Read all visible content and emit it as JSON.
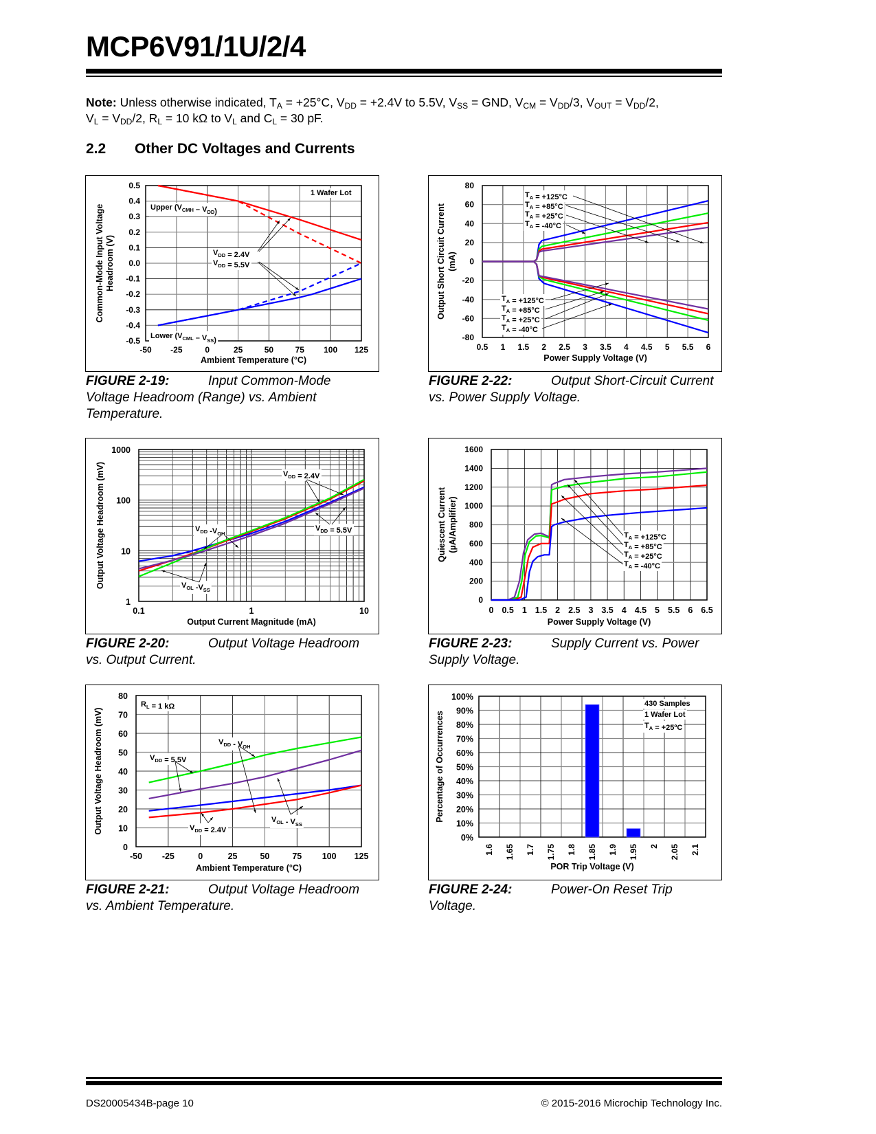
{
  "header": {
    "title": "MCP6V91/1U/2/4"
  },
  "note": {
    "label": "Note:",
    "line1": [
      {
        "t": " Unless otherwise indicated, T"
      },
      {
        "s": "A"
      },
      {
        "t": " = +25°C, V"
      },
      {
        "s": "DD"
      },
      {
        "t": " = +2.4V to 5.5V, V"
      },
      {
        "s": "SS"
      },
      {
        "t": " = GND, V"
      },
      {
        "s": "CM"
      },
      {
        "t": " = V"
      },
      {
        "s": "DD"
      },
      {
        "t": "/3, V"
      },
      {
        "s": "OUT"
      },
      {
        "t": " = V"
      },
      {
        "s": "DD"
      },
      {
        "t": "/2,"
      }
    ],
    "line2": [
      {
        "t": "V"
      },
      {
        "s": "L"
      },
      {
        "t": " = V"
      },
      {
        "s": "DD"
      },
      {
        "t": "/2, R"
      },
      {
        "s": "L"
      },
      {
        "t": " = 10 kΩ to V"
      },
      {
        "s": "L"
      },
      {
        "t": " and C"
      },
      {
        "s": "L"
      },
      {
        "t": " = 30 pF."
      }
    ]
  },
  "section": {
    "number": "2.2",
    "title": "Other DC Voltages and Currents"
  },
  "colors": {
    "red": "#ff0000",
    "blue": "#0000ff",
    "green": "#00ee00",
    "purple": "#7030a0",
    "grid": "#000000"
  },
  "figures": [
    {
      "label": "FIGURE 2-19:",
      "caption_first": "Input Common-Mode",
      "caption_rest": "Voltage Headroom (Range) vs. Ambient Temperature."
    },
    {
      "label": "FIGURE 2-22:",
      "caption_first": "Output Short-Circuit Current",
      "caption_rest": "vs. Power Supply Voltage."
    },
    {
      "label": "FIGURE 2-20:",
      "caption_first": "Output Voltage Headroom",
      "caption_rest": "vs. Output Current."
    },
    {
      "label": "FIGURE 2-23:",
      "caption_first": "Supply Current vs. Power",
      "caption_rest": "Supply Voltage."
    },
    {
      "label": "FIGURE 2-21:",
      "caption_first": "Output Voltage Headroom",
      "caption_rest": "vs. Ambient Temperature."
    },
    {
      "label": "FIGURE 2-24:",
      "caption_first": "Power-On Reset Trip",
      "caption_rest": "Voltage."
    }
  ],
  "chart_data": [
    {
      "id": "fig2-19",
      "type": "line",
      "title": "",
      "xlabel": "Ambient Temperature (°C)",
      "ylabel": [
        "Common-Mode Input Voltage",
        "Headroom (V)"
      ],
      "xlim": [
        -50,
        125
      ],
      "ylim": [
        -0.5,
        0.5
      ],
      "xticks": [
        -50,
        -25,
        0,
        25,
        50,
        75,
        100,
        125
      ],
      "yticks": [
        0.5,
        0.4,
        0.3,
        0.2,
        0.1,
        0.0,
        -0.1,
        -0.2,
        -0.3,
        -0.4,
        -0.5
      ],
      "ytick_labels": [
        "0.5",
        "0.4",
        "0.3",
        "0.2",
        "0.1",
        "0.0",
        "-0.1",
        "-0.2",
        "-0.3",
        "-0.4",
        "-0.5"
      ],
      "grid": true,
      "annotations": [
        "1 Wafer Lot",
        "Upper (VCMH – VDD)",
        "Lower (VCML – VSS)",
        "VDD = 2.4V",
        "VDD = 5.5V"
      ],
      "series": [
        {
          "name": "Upper VDD = 2.4V",
          "color": "red",
          "dash": false,
          "x": [
            -40,
            25,
            75,
            125
          ],
          "y": [
            0.5,
            0.4,
            0.28,
            0.15
          ]
        },
        {
          "name": "Upper VDD = 5.5V",
          "color": "red",
          "dash": true,
          "x": [
            -40,
            25,
            75,
            125
          ],
          "y": [
            0.5,
            0.4,
            0.19,
            0.0
          ]
        },
        {
          "name": "Lower VDD = 2.4V",
          "color": "blue",
          "dash": false,
          "x": [
            -40,
            25,
            75,
            85,
            125
          ],
          "y": [
            -0.4,
            -0.3,
            -0.22,
            -0.2,
            -0.1
          ]
        },
        {
          "name": "Lower VDD = 5.5V",
          "color": "blue",
          "dash": true,
          "x": [
            -40,
            25,
            75,
            125
          ],
          "y": [
            -0.4,
            -0.3,
            -0.18,
            0.0
          ]
        }
      ]
    },
    {
      "id": "fig2-22",
      "type": "line",
      "title": "",
      "xlabel": "Power Supply Voltage (V)",
      "ylabel": [
        "Output Short Circuit Current",
        "(mA)"
      ],
      "xlim": [
        0.5,
        6
      ],
      "ylim": [
        -80,
        80
      ],
      "xticks": [
        0.5,
        1,
        1.5,
        2,
        2.5,
        3,
        3.5,
        4,
        4.5,
        5,
        5.5,
        6
      ],
      "xtick_labels": [
        "0.5",
        "1",
        "1.5",
        "2",
        "2.5",
        "3",
        "3.5",
        "4",
        "4.5",
        "5",
        "5.5",
        "6"
      ],
      "yticks": [
        80,
        60,
        40,
        20,
        0,
        -20,
        -40,
        -60,
        -80
      ],
      "ytick_labels": [
        "80",
        "60",
        "40",
        "20",
        "0",
        "-20",
        "-40",
        "-60",
        "-80"
      ],
      "grid": true,
      "legend_upper": [
        "TA = +125°C",
        "TA = +85°C",
        "TA = +25°C",
        "TA = -40°C"
      ],
      "legend_lower": [
        "TA = +125°C",
        "TA = +85°C",
        "TA = +25°C",
        "TA = -40°C"
      ],
      "series": [
        {
          "name": "Source -40°C",
          "color": "blue",
          "x": [
            0.5,
            1.75,
            1.82,
            1.88,
            1.95,
            6
          ],
          "y": [
            0,
            0,
            2,
            18,
            22,
            64
          ]
        },
        {
          "name": "Source +25°C",
          "color": "green",
          "x": [
            0.5,
            1.75,
            1.82,
            1.88,
            1.95,
            6
          ],
          "y": [
            0,
            0,
            2,
            13,
            16,
            51
          ]
        },
        {
          "name": "Source +85°C",
          "color": "red",
          "x": [
            0.5,
            1.75,
            1.82,
            1.88,
            1.95,
            6
          ],
          "y": [
            0,
            0,
            2,
            11,
            13,
            41
          ]
        },
        {
          "name": "Source +125°C",
          "color": "purple",
          "x": [
            0.5,
            1.75,
            1.82,
            1.88,
            1.95,
            6
          ],
          "y": [
            0,
            0,
            2,
            10,
            11,
            36
          ]
        },
        {
          "name": "Sink -40°C",
          "color": "blue",
          "x": [
            0.5,
            1.75,
            1.82,
            1.88,
            2.0,
            6
          ],
          "y": [
            0,
            0,
            -3,
            -18,
            -23,
            -75
          ]
        },
        {
          "name": "Sink +25°C",
          "color": "green",
          "x": [
            0.5,
            1.75,
            1.82,
            1.88,
            2.0,
            6
          ],
          "y": [
            0,
            0,
            -3,
            -16,
            -19,
            -62
          ]
        },
        {
          "name": "Sink +85°C",
          "color": "red",
          "x": [
            0.5,
            1.75,
            1.82,
            1.88,
            2.0,
            6
          ],
          "y": [
            0,
            0,
            -3,
            -15,
            -17,
            -55
          ]
        },
        {
          "name": "Sink +125°C",
          "color": "purple",
          "x": [
            0.5,
            1.75,
            1.82,
            1.88,
            2.0,
            6
          ],
          "y": [
            0,
            0,
            -3,
            -15,
            -16,
            -50
          ]
        }
      ]
    },
    {
      "id": "fig2-20",
      "type": "line",
      "scale": "log-log",
      "title": "",
      "xlabel": "Output Current Magnitude (mA)",
      "ylabel": [
        "Output Voltage Headroom (mV)"
      ],
      "xlim": [
        0.1,
        10
      ],
      "ylim": [
        1,
        1000
      ],
      "xtick_labels": [
        "0.1",
        "1",
        "10"
      ],
      "ytick_labels": [
        "1000",
        "100",
        "10",
        "1"
      ],
      "grid": true,
      "annotations": [
        "VDD = 2.4V",
        "VDD = 5.5V",
        "VDD -VOH",
        "VOL -VSS"
      ],
      "series": [
        {
          "name": "VDD-VOH 5.5V",
          "color": "blue",
          "x": [
            0.1,
            0.2,
            0.3,
            0.5,
            1,
            2,
            5,
            10
          ],
          "y": [
            6.2,
            8,
            10,
            14,
            22,
            38,
            90,
            180
          ]
        },
        {
          "name": "VDD-VOH 2.4V",
          "color": "red",
          "x": [
            0.1,
            0.2,
            0.3,
            0.5,
            1,
            2,
            5,
            10
          ],
          "y": [
            4.0,
            6.5,
            8.8,
            13.5,
            24,
            43,
            105,
            240
          ]
        },
        {
          "name": "VOL-VSS 2.4V",
          "color": "green",
          "x": [
            0.1,
            0.2,
            0.3,
            0.5,
            1,
            2,
            5,
            10
          ],
          "y": [
            3.1,
            5.8,
            8.5,
            14,
            25,
            45,
            110,
            255
          ]
        },
        {
          "name": "VOL-VSS 5.5V",
          "color": "purple",
          "x": [
            0.1,
            0.2,
            0.3,
            0.5,
            1,
            2,
            5,
            10
          ],
          "y": [
            4.4,
            6.5,
            8.3,
            12,
            20,
            35,
            85,
            172
          ]
        }
      ]
    },
    {
      "id": "fig2-23",
      "type": "line",
      "title": "",
      "xlabel": "Power Supply Voltage (V)",
      "ylabel": [
        "Quiescent Current",
        "(µA/Amplifier)"
      ],
      "xlim": [
        0,
        6.5
      ],
      "ylim": [
        0,
        1600
      ],
      "xticks": [
        0,
        0.5,
        1,
        1.5,
        2,
        2.5,
        3,
        3.5,
        4,
        4.5,
        5,
        5.5,
        6,
        6.5
      ],
      "xtick_labels": [
        "0",
        "0.5",
        "1",
        "1.5",
        "2",
        "2.5",
        "3",
        "3.5",
        "4",
        "4.5",
        "5",
        "5.5",
        "6",
        "6.5"
      ],
      "yticks": [
        1600,
        1400,
        1200,
        1000,
        800,
        600,
        400,
        200,
        0
      ],
      "ytick_labels": [
        "1600",
        "1400",
        "1200",
        "1000",
        "800",
        "600",
        "400",
        "200",
        "0"
      ],
      "grid": true,
      "legend": [
        "TA = +125°C",
        "TA = +85°C",
        "TA = +25°C",
        "TA = -40°C"
      ],
      "series": [
        {
          "name": "+125°C",
          "color": "purple",
          "x": [
            0,
            0.5,
            0.7,
            0.85,
            0.97,
            1.1,
            1.3,
            1.5,
            1.75,
            1.82,
            1.9,
            2.2,
            3,
            4,
            5,
            6.5
          ],
          "y": [
            0,
            0,
            30,
            200,
            500,
            640,
            700,
            710,
            670,
            1225,
            1240,
            1280,
            1310,
            1340,
            1360,
            1400
          ]
        },
        {
          "name": "+85°C",
          "color": "green",
          "x": [
            0,
            0.6,
            0.8,
            0.92,
            1.02,
            1.15,
            1.35,
            1.5,
            1.75,
            1.82,
            1.9,
            2.2,
            3,
            4,
            5,
            6.5
          ],
          "y": [
            0,
            0,
            30,
            200,
            480,
            620,
            680,
            685,
            660,
            1170,
            1180,
            1210,
            1250,
            1290,
            1310,
            1360
          ]
        },
        {
          "name": "+25°C",
          "color": "red",
          "x": [
            0,
            0.7,
            0.9,
            1.02,
            1.12,
            1.25,
            1.5,
            1.75,
            1.82,
            1.9,
            2.2,
            3,
            4,
            5,
            6.5
          ],
          "y": [
            0,
            0,
            30,
            250,
            450,
            560,
            600,
            600,
            1020,
            1030,
            1070,
            1130,
            1160,
            1180,
            1220
          ]
        },
        {
          "name": "-40°C",
          "color": "blue",
          "x": [
            0,
            0.85,
            1.05,
            1.15,
            1.25,
            1.4,
            1.6,
            1.75,
            1.82,
            1.9,
            2.2,
            3,
            3.5,
            4.5,
            6.5
          ],
          "y": [
            0,
            0,
            30,
            300,
            410,
            460,
            480,
            480,
            780,
            800,
            830,
            880,
            900,
            930,
            980
          ]
        }
      ]
    },
    {
      "id": "fig2-21",
      "type": "line",
      "title": "",
      "xlabel": "Ambient Temperature (°C)",
      "ylabel": [
        "Output Voltage Headroom (mV)"
      ],
      "xlim": [
        -50,
        125
      ],
      "ylim": [
        0,
        80
      ],
      "xticks": [
        -50,
        -25,
        0,
        25,
        50,
        75,
        100,
        125
      ],
      "xtick_labels": [
        "-50",
        "-25",
        "0",
        "25",
        "50",
        "75",
        "100",
        "125"
      ],
      "yticks": [
        80,
        70,
        60,
        50,
        40,
        30,
        20,
        10,
        0
      ],
      "ytick_labels": [
        "80",
        "70",
        "60",
        "50",
        "40",
        "30",
        "20",
        "10",
        "0"
      ],
      "grid": true,
      "annotations": [
        "RL = 1 kΩ",
        "VDD = 5.5V",
        "VDD - VOH",
        "VDD = 2.4V",
        "VOL - VSS"
      ],
      "series": [
        {
          "name": "VDD-VOH 5.5V",
          "color": "green",
          "x": [
            -40,
            0,
            25,
            50,
            75,
            100,
            125
          ],
          "y": [
            34,
            40,
            44,
            48.5,
            52,
            55,
            58
          ]
        },
        {
          "name": "VOL-VSS 5.5V",
          "color": "purple",
          "x": [
            -40,
            0,
            25,
            50,
            75,
            100,
            125
          ],
          "y": [
            25.5,
            30.5,
            33.5,
            37,
            41.5,
            46,
            51
          ]
        },
        {
          "name": "VDD-VOH 2.4V",
          "color": "blue",
          "x": [
            -40,
            0,
            25,
            50,
            75,
            100,
            125
          ],
          "y": [
            19,
            22,
            24,
            26,
            28,
            30,
            32.5
          ]
        },
        {
          "name": "VOL-VSS 2.4V",
          "color": "red",
          "x": [
            -40,
            0,
            25,
            50,
            75,
            100,
            125
          ],
          "y": [
            15.5,
            18,
            20,
            22.5,
            25,
            28.5,
            32.5
          ]
        }
      ]
    },
    {
      "id": "fig2-24",
      "type": "bar",
      "title": "",
      "xlabel": "POR Trip Voltage (V)",
      "ylabel": [
        "Percentage of Occurrences"
      ],
      "categories": [
        "1.6",
        "1.65",
        "1.7",
        "1.75",
        "1.8",
        "1.85",
        "1.9",
        "1.95",
        "2",
        "2.05",
        "2.1"
      ],
      "values": [
        0,
        0,
        0,
        0,
        0,
        94,
        0,
        6,
        0,
        0,
        0
      ],
      "ylim": [
        0,
        100
      ],
      "ytick_labels": [
        "100%",
        "90%",
        "80%",
        "70%",
        "60%",
        "50%",
        "40%",
        "30%",
        "20%",
        "10%",
        "0%"
      ],
      "grid": true,
      "annotations": [
        "430 Samples",
        "1 Wafer Lot",
        "TA = +25ºC"
      ]
    }
  ],
  "footer": {
    "left": "DS20005434B-page 10",
    "right": "© 2015-2016 Microchip Technology Inc."
  }
}
